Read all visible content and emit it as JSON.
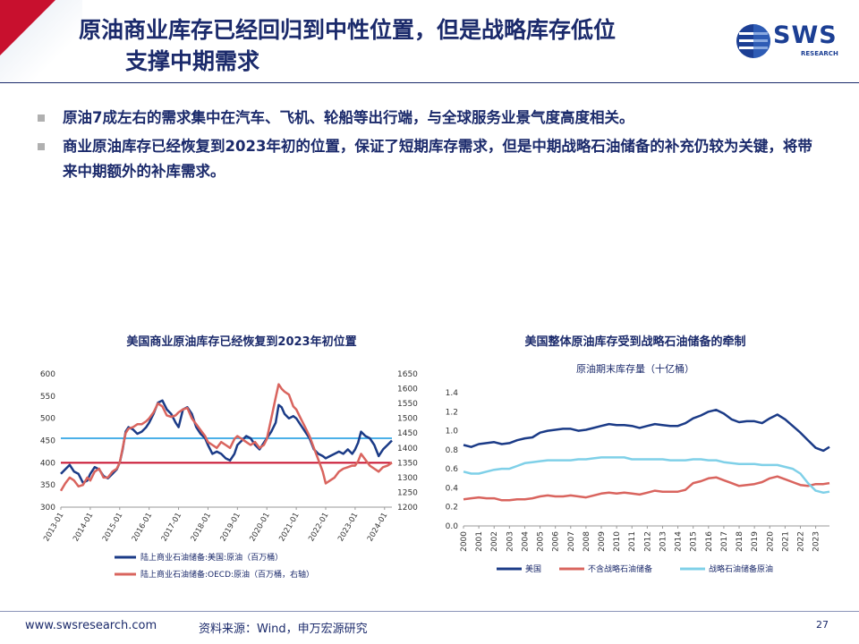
{
  "title": {
    "line1": "原油商业库存已经回归到中性位置，但是战略库存低位",
    "line2": "支撑中期需求"
  },
  "logo": {
    "text": "SWS",
    "sub": "RESEARCH"
  },
  "bullets": [
    "原油7成左右的需求集中在汽车、飞机、轮船等出行端，与全球服务业景气度高度相关。",
    "商业原油库存已经恢复到2023年初的位置，保证了短期库存需求，但是中期战略石油储备的补充仍较为关键，将带来中期额外的补库需求。"
  ],
  "footer": {
    "url": "www.swsresearch.com",
    "source": "资料来源：Wind，申万宏源研究",
    "page": "27"
  },
  "colors": {
    "navy": "#1b3b87",
    "red": "#d9645e",
    "light_blue": "#7fd0e8",
    "hline_blue": "#4bb0e8",
    "hline_red": "#c8102e"
  },
  "chart_data": [
    {
      "type": "line",
      "title": "美国商业原油库存已经恢复到2023年初位置",
      "x_ticks": [
        "2013-01",
        "2014-01",
        "2015-01",
        "2016-01",
        "2017-01",
        "2018-01",
        "2019-01",
        "2020-01",
        "2021-01",
        "2022-01",
        "2023-01",
        "2024-01"
      ],
      "x_range": [
        "2013-01",
        "2024-04"
      ],
      "y_left_ticks": [
        300,
        350,
        400,
        450,
        500,
        550,
        600
      ],
      "y_right_ticks": [
        1200,
        1250,
        1300,
        1350,
        1400,
        1450,
        1500,
        1550,
        1600,
        1650
      ],
      "ylim_left": [
        300,
        600
      ],
      "ylim_right": [
        1200,
        1650
      ],
      "reference_lines": [
        {
          "axis": "left",
          "value": 455,
          "color": "#4bb0e8"
        },
        {
          "axis": "left",
          "value": 400,
          "color": "#c8102e"
        }
      ],
      "series": [
        {
          "name": "陆上商业石油储备:美国:原油（百万桶）",
          "axis": "left",
          "color": "#1b3b87",
          "t": [
            2013.0,
            2013.15,
            2013.3,
            2013.45,
            2013.6,
            2013.75,
            2013.9,
            2014.0,
            2014.15,
            2014.3,
            2014.45,
            2014.6,
            2014.75,
            2014.9,
            2015.0,
            2015.1,
            2015.2,
            2015.3,
            2015.45,
            2015.6,
            2015.75,
            2015.9,
            2016.0,
            2016.15,
            2016.3,
            2016.45,
            2016.6,
            2016.75,
            2016.9,
            2017.0,
            2017.15,
            2017.3,
            2017.45,
            2017.6,
            2017.75,
            2017.9,
            2018.0,
            2018.15,
            2018.3,
            2018.45,
            2018.6,
            2018.75,
            2018.9,
            2019.0,
            2019.15,
            2019.3,
            2019.45,
            2019.6,
            2019.75,
            2019.9,
            2020.0,
            2020.15,
            2020.3,
            2020.4,
            2020.5,
            2020.6,
            2020.75,
            2020.9,
            2021.0,
            2021.15,
            2021.3,
            2021.45,
            2021.6,
            2021.75,
            2021.9,
            2022.0,
            2022.15,
            2022.3,
            2022.45,
            2022.6,
            2022.75,
            2022.9,
            2023.0,
            2023.1,
            2023.2,
            2023.35,
            2023.5,
            2023.65,
            2023.8,
            2023.95,
            2024.1,
            2024.25
          ],
          "values": [
            375,
            385,
            395,
            380,
            375,
            355,
            360,
            375,
            390,
            385,
            370,
            365,
            375,
            385,
            400,
            430,
            470,
            480,
            475,
            465,
            470,
            480,
            490,
            510,
            535,
            540,
            520,
            510,
            490,
            480,
            520,
            525,
            510,
            480,
            465,
            455,
            440,
            420,
            425,
            420,
            410,
            405,
            420,
            440,
            450,
            460,
            455,
            440,
            430,
            445,
            455,
            470,
            490,
            530,
            525,
            510,
            500,
            505,
            500,
            485,
            470,
            455,
            430,
            420,
            415,
            410,
            415,
            420,
            425,
            420,
            430,
            420,
            430,
            445,
            470,
            460,
            455,
            440,
            415,
            430,
            440,
            450
          ]
        },
        {
          "name": "陆上商业石油储备:OECD:原油（百万桶，右轴）",
          "axis": "right",
          "color": "#d9645e",
          "t": [
            2013.0,
            2013.15,
            2013.3,
            2013.45,
            2013.6,
            2013.75,
            2013.9,
            2014.0,
            2014.15,
            2014.3,
            2014.45,
            2014.6,
            2014.75,
            2014.9,
            2015.0,
            2015.1,
            2015.2,
            2015.3,
            2015.45,
            2015.6,
            2015.75,
            2015.9,
            2016.0,
            2016.15,
            2016.3,
            2016.45,
            2016.6,
            2016.75,
            2016.9,
            2017.0,
            2017.15,
            2017.3,
            2017.45,
            2017.6,
            2017.75,
            2017.9,
            2018.0,
            2018.15,
            2018.3,
            2018.45,
            2018.6,
            2018.75,
            2018.9,
            2019.0,
            2019.15,
            2019.3,
            2019.45,
            2019.6,
            2019.75,
            2019.9,
            2020.0,
            2020.15,
            2020.3,
            2020.4,
            2020.5,
            2020.6,
            2020.75,
            2020.9,
            2021.0,
            2021.15,
            2021.3,
            2021.45,
            2021.6,
            2021.75,
            2021.9,
            2022.0,
            2022.15,
            2022.3,
            2022.45,
            2022.6,
            2022.75,
            2022.9,
            2023.0,
            2023.1,
            2023.2,
            2023.35,
            2023.5,
            2023.65,
            2023.8,
            2023.95,
            2024.1,
            2024.25
          ],
          "values": [
            1255,
            1280,
            1300,
            1290,
            1270,
            1275,
            1300,
            1290,
            1320,
            1330,
            1300,
            1300,
            1320,
            1330,
            1350,
            1400,
            1450,
            1465,
            1470,
            1480,
            1480,
            1490,
            1500,
            1520,
            1550,
            1540,
            1510,
            1505,
            1510,
            1520,
            1530,
            1535,
            1500,
            1480,
            1460,
            1440,
            1420,
            1410,
            1400,
            1420,
            1410,
            1400,
            1430,
            1440,
            1430,
            1420,
            1410,
            1420,
            1400,
            1410,
            1430,
            1500,
            1570,
            1615,
            1600,
            1590,
            1580,
            1540,
            1530,
            1500,
            1470,
            1440,
            1400,
            1360,
            1320,
            1280,
            1290,
            1300,
            1320,
            1330,
            1335,
            1340,
            1340,
            1355,
            1380,
            1360,
            1340,
            1330,
            1320,
            1335,
            1340,
            1350
          ]
        }
      ]
    },
    {
      "type": "line",
      "title": "美国整体原油库存受到战略石油储备的牵制",
      "subtitle": "原油期末库存量（十亿桶）",
      "x_ticks": [
        "2000",
        "2001",
        "2002",
        "2003",
        "2004",
        "2005",
        "2006",
        "2007",
        "2008",
        "2009",
        "2010",
        "2011",
        "2012",
        "2013",
        "2014",
        "2015",
        "2016",
        "2017",
        "2018",
        "2019",
        "2020",
        "2021",
        "2022",
        "2023"
      ],
      "x_range": [
        2000.0,
        2023.9
      ],
      "y_ticks": [
        0.0,
        0.2,
        0.4,
        0.6,
        0.8,
        1.0,
        1.2,
        1.4
      ],
      "ylim": [
        0,
        1.4
      ],
      "series": [
        {
          "name": "美国",
          "color": "#1b3b87",
          "t": [
            2000.0,
            2000.5,
            2001.0,
            2001.5,
            2002.0,
            2002.5,
            2003.0,
            2003.5,
            2004.0,
            2004.5,
            2005.0,
            2005.5,
            2006.0,
            2006.5,
            2007.0,
            2007.5,
            2008.0,
            2008.5,
            2009.0,
            2009.5,
            2010.0,
            2010.5,
            2011.0,
            2011.5,
            2012.0,
            2012.5,
            2013.0,
            2013.5,
            2014.0,
            2014.5,
            2015.0,
            2015.5,
            2016.0,
            2016.5,
            2017.0,
            2017.5,
            2018.0,
            2018.5,
            2019.0,
            2019.5,
            2020.0,
            2020.5,
            2021.0,
            2021.5,
            2022.0,
            2022.5,
            2023.0,
            2023.5,
            2023.9
          ],
          "values": [
            0.85,
            0.83,
            0.86,
            0.87,
            0.88,
            0.86,
            0.87,
            0.9,
            0.92,
            0.93,
            0.98,
            1.0,
            1.01,
            1.02,
            1.02,
            1.0,
            1.01,
            1.03,
            1.05,
            1.07,
            1.06,
            1.06,
            1.05,
            1.03,
            1.05,
            1.07,
            1.06,
            1.05,
            1.05,
            1.08,
            1.13,
            1.16,
            1.2,
            1.22,
            1.18,
            1.12,
            1.09,
            1.1,
            1.1,
            1.08,
            1.13,
            1.17,
            1.12,
            1.05,
            0.98,
            0.9,
            0.82,
            0.79,
            0.83
          ]
        },
        {
          "name": "不含战略石油储备",
          "color": "#d9645e",
          "t": [
            2000.0,
            2000.5,
            2001.0,
            2001.5,
            2002.0,
            2002.5,
            2003.0,
            2003.5,
            2004.0,
            2004.5,
            2005.0,
            2005.5,
            2006.0,
            2006.5,
            2007.0,
            2007.5,
            2008.0,
            2008.5,
            2009.0,
            2009.5,
            2010.0,
            2010.5,
            2011.0,
            2011.5,
            2012.0,
            2012.5,
            2013.0,
            2013.5,
            2014.0,
            2014.5,
            2015.0,
            2015.5,
            2016.0,
            2016.5,
            2017.0,
            2017.5,
            2018.0,
            2018.5,
            2019.0,
            2019.5,
            2020.0,
            2020.5,
            2021.0,
            2021.5,
            2022.0,
            2022.5,
            2023.0,
            2023.5,
            2023.9
          ],
          "values": [
            0.28,
            0.29,
            0.3,
            0.29,
            0.29,
            0.27,
            0.27,
            0.28,
            0.28,
            0.29,
            0.31,
            0.32,
            0.31,
            0.31,
            0.32,
            0.31,
            0.3,
            0.32,
            0.34,
            0.35,
            0.34,
            0.35,
            0.34,
            0.33,
            0.35,
            0.37,
            0.36,
            0.36,
            0.36,
            0.38,
            0.45,
            0.47,
            0.5,
            0.51,
            0.48,
            0.45,
            0.42,
            0.43,
            0.44,
            0.46,
            0.5,
            0.52,
            0.49,
            0.46,
            0.43,
            0.42,
            0.44,
            0.44,
            0.45
          ]
        },
        {
          "name": "战略石油储备原油",
          "color": "#7fd0e8",
          "t": [
            2000.0,
            2000.5,
            2001.0,
            2001.5,
            2002.0,
            2002.5,
            2003.0,
            2003.5,
            2004.0,
            2004.5,
            2005.0,
            2005.5,
            2006.0,
            2006.5,
            2007.0,
            2007.5,
            2008.0,
            2008.5,
            2009.0,
            2009.5,
            2010.0,
            2010.5,
            2011.0,
            2011.5,
            2012.0,
            2012.5,
            2013.0,
            2013.5,
            2014.0,
            2014.5,
            2015.0,
            2015.5,
            2016.0,
            2016.5,
            2017.0,
            2017.5,
            2018.0,
            2018.5,
            2019.0,
            2019.5,
            2020.0,
            2020.5,
            2021.0,
            2021.5,
            2022.0,
            2022.5,
            2023.0,
            2023.5,
            2023.9
          ],
          "values": [
            0.57,
            0.55,
            0.55,
            0.57,
            0.59,
            0.6,
            0.6,
            0.63,
            0.66,
            0.67,
            0.68,
            0.69,
            0.69,
            0.69,
            0.69,
            0.7,
            0.7,
            0.71,
            0.72,
            0.72,
            0.72,
            0.72,
            0.7,
            0.7,
            0.7,
            0.7,
            0.7,
            0.69,
            0.69,
            0.69,
            0.7,
            0.7,
            0.69,
            0.69,
            0.67,
            0.66,
            0.65,
            0.65,
            0.65,
            0.64,
            0.64,
            0.64,
            0.62,
            0.6,
            0.55,
            0.45,
            0.37,
            0.35,
            0.36
          ]
        }
      ]
    }
  ]
}
